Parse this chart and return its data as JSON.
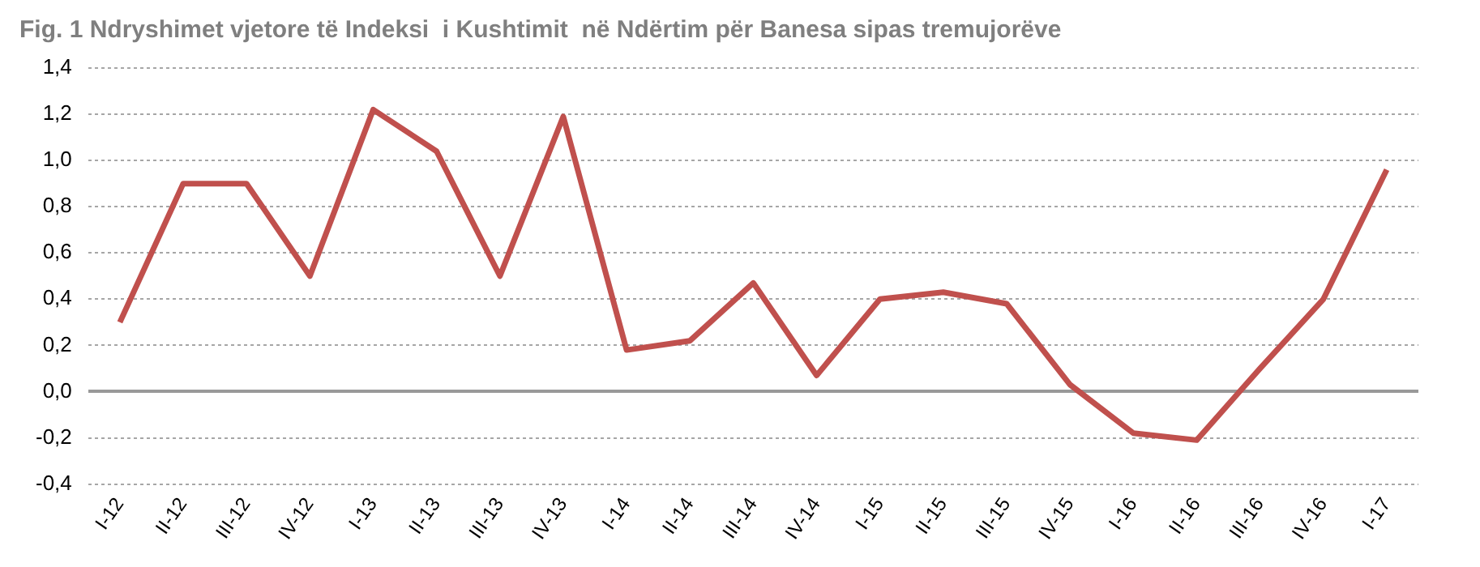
{
  "chart_data": {
    "type": "line",
    "title": "Fig. 1 Ndryshimet vjetore të Indeksi  i Kushtimit  në Ndërtim për Banesa sipas tremujorëve",
    "categories": [
      "I-12",
      "II-12",
      "III-12",
      "IV-12",
      "I-13",
      "II-13",
      "III-13",
      "IV-13",
      "I-14",
      "II-14",
      "III-14",
      "IV-14",
      "I-15",
      "II-15",
      "III-15",
      "IV-15",
      "I-16",
      "II-16",
      "III-16",
      "IV-16",
      "I-17"
    ],
    "series": [
      {
        "color": "#c0504d",
        "values": [
          0.3,
          0.9,
          0.9,
          0.5,
          1.22,
          1.04,
          0.5,
          1.19,
          0.18,
          0.22,
          0.47,
          0.07,
          0.4,
          0.43,
          0.38,
          0.03,
          -0.18,
          -0.21,
          0.1,
          0.4,
          0.96
        ]
      }
    ],
    "ylim": [
      -0.4,
      1.4
    ],
    "yticks": [
      {
        "value": -0.4,
        "label": "-0,4"
      },
      {
        "value": -0.2,
        "label": "-0,2"
      },
      {
        "value": 0,
        "label": "0,0"
      },
      {
        "value": 0.2,
        "label": "0,2"
      },
      {
        "value": 0.4,
        "label": "0,4"
      },
      {
        "value": 0.6,
        "label": "0,6"
      },
      {
        "value": 0.8,
        "label": "0,8"
      },
      {
        "value": 1.0,
        "label": "1,0"
      },
      {
        "value": 1.2,
        "label": "1,2"
      },
      {
        "value": 1.4,
        "label": "1,4"
      }
    ],
    "grid": "y",
    "legend": false,
    "marker": "none",
    "line_style": "solid"
  }
}
